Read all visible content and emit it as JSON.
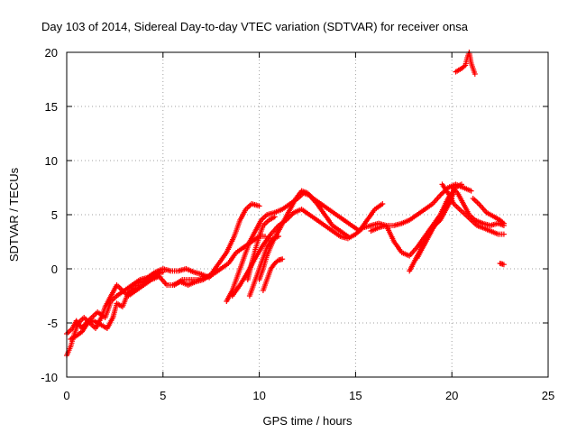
{
  "chart_data": {
    "type": "scatter",
    "title": "Day 103 of 2014, Sidereal Day-to-day VTEC variation (SDTVAR) for receiver onsa",
    "xlabel": "GPS time / hours",
    "ylabel": "SDTVAR / TECUs",
    "xlim": [
      0,
      25
    ],
    "ylim": [
      -10,
      20
    ],
    "xticks": [
      0,
      5,
      10,
      15,
      20,
      25
    ],
    "yticks": [
      -10,
      -5,
      0,
      5,
      10,
      15,
      20
    ],
    "grid": true,
    "marker": "plus",
    "series": [
      {
        "name": "SDTVAR",
        "color": "#ff0000",
        "tracks": [
          [
            [
              0,
              -6
            ],
            [
              0.3,
              -5.5
            ],
            [
              0.5,
              -4.8
            ],
            [
              0.8,
              -5.5
            ],
            [
              1.0,
              -5
            ],
            [
              1.3,
              -4.5
            ],
            [
              1.6,
              -4
            ],
            [
              2.0,
              -4.5
            ],
            [
              2.3,
              -3
            ],
            [
              2.6,
              -2.5
            ],
            [
              3.0,
              -2
            ],
            [
              3.4,
              -1.5
            ],
            [
              3.8,
              -1
            ],
            [
              4.2,
              -0.8
            ],
            [
              4.6,
              -0.3
            ],
            [
              5.0,
              0
            ],
            [
              5.4,
              -0.2
            ],
            [
              5.8,
              -0.2
            ],
            [
              6.2,
              0
            ],
            [
              6.6,
              -0.3
            ],
            [
              7.0,
              -0.5
            ],
            [
              7.4,
              -0.8
            ],
            [
              7.8,
              0
            ]
          ],
          [
            [
              0,
              -8
            ],
            [
              0.2,
              -7.2
            ],
            [
              0.4,
              -6
            ],
            [
              0.6,
              -5
            ],
            [
              0.9,
              -4.5
            ],
            [
              1.2,
              -5
            ],
            [
              1.5,
              -5.5
            ],
            [
              1.8,
              -4.5
            ],
            [
              2.0,
              -3.5
            ],
            [
              2.3,
              -2.5
            ],
            [
              2.6,
              -1.5
            ],
            [
              2.9,
              -2
            ],
            [
              3.2,
              -2.5
            ],
            [
              3.6,
              -2
            ],
            [
              4.0,
              -1.5
            ],
            [
              4.4,
              -1
            ],
            [
              4.8,
              -0.7
            ],
            [
              5.2,
              -1.5
            ],
            [
              5.6,
              -1.5
            ],
            [
              6.0,
              -1
            ],
            [
              6.4,
              -1
            ],
            [
              6.8,
              -1
            ],
            [
              7.2,
              -0.8
            ],
            [
              7.6,
              -0.5
            ],
            [
              8.0,
              0
            ],
            [
              8.4,
              0.5
            ],
            [
              8.8,
              1.5
            ],
            [
              9.2,
              2
            ],
            [
              9.6,
              2.5
            ],
            [
              10.0,
              3
            ],
            [
              10.3,
              3
            ]
          ],
          [
            [
              0.2,
              -6.5
            ],
            [
              0.5,
              -6.2
            ],
            [
              0.8,
              -5.8
            ],
            [
              1.1,
              -5
            ],
            [
              1.4,
              -4.8
            ],
            [
              1.8,
              -5.2
            ],
            [
              2.1,
              -5.5
            ],
            [
              2.4,
              -4.5
            ],
            [
              2.6,
              -3.2
            ],
            [
              2.9,
              -3.5
            ],
            [
              3.2,
              -2.2
            ],
            [
              3.5,
              -1.8
            ],
            [
              3.8,
              -1.3
            ],
            [
              4.2,
              -1
            ],
            [
              4.6,
              -0.5
            ],
            [
              5.0,
              -0.3
            ]
          ],
          [
            [
              5.5,
              -1.5
            ],
            [
              5.9,
              -1.2
            ],
            [
              6.3,
              -1.5
            ],
            [
              6.7,
              -1.2
            ],
            [
              7.1,
              -1
            ],
            [
              7.5,
              -0.5
            ],
            [
              7.9,
              0.5
            ],
            [
              8.3,
              1.5
            ],
            [
              8.7,
              3
            ],
            [
              9.0,
              4.5
            ],
            [
              9.3,
              5.5
            ],
            [
              9.6,
              6
            ],
            [
              10.0,
              5.8
            ]
          ],
          [
            [
              8.3,
              -3
            ],
            [
              8.6,
              -2
            ],
            [
              8.9,
              -0.5
            ],
            [
              9.2,
              1
            ],
            [
              9.5,
              2.5
            ],
            [
              9.8,
              3.5
            ],
            [
              10.1,
              4.5
            ],
            [
              10.4,
              5
            ],
            [
              10.8,
              5.2
            ],
            [
              11.2,
              5.5
            ],
            [
              11.6,
              6
            ],
            [
              12.0,
              6.5
            ],
            [
              12.3,
              7
            ],
            [
              12.6,
              6.8
            ],
            [
              13.0,
              6
            ],
            [
              13.4,
              5
            ],
            [
              13.8,
              4
            ],
            [
              14.2,
              3.5
            ],
            [
              14.6,
              3
            ]
          ],
          [
            [
              8.6,
              -2.5
            ],
            [
              9.0,
              -1.5
            ],
            [
              9.4,
              -0.3
            ],
            [
              9.8,
              1
            ],
            [
              10.2,
              2.2
            ],
            [
              10.6,
              3.2
            ],
            [
              11.0,
              4
            ],
            [
              11.4,
              4.5
            ],
            [
              11.8,
              5.2
            ],
            [
              12.2,
              5.5
            ],
            [
              12.6,
              5
            ],
            [
              13.0,
              4.5
            ],
            [
              13.4,
              4
            ],
            [
              13.8,
              3.5
            ],
            [
              14.2,
              3
            ],
            [
              14.6,
              2.8
            ],
            [
              15.0,
              3.2
            ],
            [
              15.4,
              3.8
            ],
            [
              15.8,
              4
            ],
            [
              16.2,
              4.2
            ],
            [
              16.6,
              4
            ],
            [
              17.0,
              4
            ],
            [
              17.4,
              4.2
            ],
            [
              17.8,
              4.5
            ],
            [
              18.2,
              5
            ],
            [
              18.6,
              5.5
            ],
            [
              19.0,
              6
            ],
            [
              19.4,
              6.8
            ],
            [
              19.8,
              7.5
            ],
            [
              20.2,
              7.8
            ],
            [
              20.6,
              7.5
            ],
            [
              21.0,
              7.2
            ]
          ],
          [
            [
              9.4,
              -1
            ],
            [
              9.6,
              0.5
            ],
            [
              9.8,
              1.8
            ],
            [
              10.0,
              3
            ],
            [
              10.2,
              4
            ],
            [
              10.5,
              4.5
            ],
            [
              10.8,
              4.8
            ]
          ],
          [
            [
              9.5,
              -2.5
            ],
            [
              9.8,
              -1
            ],
            [
              10.0,
              0
            ],
            [
              10.2,
              1
            ],
            [
              10.4,
              2
            ],
            [
              10.7,
              2.8
            ],
            [
              11.0,
              3
            ]
          ],
          [
            [
              10.0,
              -1
            ],
            [
              10.2,
              0
            ],
            [
              10.4,
              1.2
            ],
            [
              10.7,
              2.5
            ],
            [
              11.0,
              3.5
            ],
            [
              11.3,
              4.5
            ],
            [
              11.6,
              5.5
            ],
            [
              11.9,
              6.5
            ],
            [
              12.2,
              7.2
            ],
            [
              12.5,
              7
            ],
            [
              12.8,
              6.5
            ],
            [
              13.2,
              6
            ],
            [
              13.6,
              5.5
            ],
            [
              14.0,
              5
            ],
            [
              14.4,
              4.5
            ],
            [
              14.8,
              4
            ],
            [
              15.2,
              3.5
            ],
            [
              15.6,
              4.5
            ],
            [
              16.0,
              5.5
            ],
            [
              16.4,
              6
            ]
          ],
          [
            [
              10.2,
              -2
            ],
            [
              10.4,
              -1
            ],
            [
              10.6,
              0
            ],
            [
              10.8,
              0.5
            ],
            [
              11.0,
              0.8
            ],
            [
              11.2,
              0.9
            ]
          ],
          [
            [
              15.8,
              3.5
            ],
            [
              16.2,
              3.8
            ],
            [
              16.6,
              4
            ],
            [
              17.0,
              2.5
            ],
            [
              17.4,
              1.5
            ],
            [
              17.8,
              1.2
            ],
            [
              18.2,
              2
            ],
            [
              18.6,
              3
            ],
            [
              19.0,
              4
            ],
            [
              19.4,
              5
            ],
            [
              19.8,
              6.5
            ],
            [
              20.2,
              7.5
            ],
            [
              20.5,
              7.8
            ]
          ],
          [
            [
              17.8,
              -0.2
            ],
            [
              18.0,
              0.5
            ],
            [
              18.3,
              1.5
            ],
            [
              18.6,
              2.5
            ],
            [
              18.9,
              3.5
            ],
            [
              19.2,
              4.2
            ],
            [
              19.5,
              5
            ],
            [
              19.8,
              6
            ],
            [
              20.1,
              7
            ]
          ],
          [
            [
              18.2,
              1
            ],
            [
              18.5,
              2
            ],
            [
              18.8,
              3
            ],
            [
              19.1,
              4
            ],
            [
              19.4,
              4.5
            ],
            [
              19.7,
              5.5
            ],
            [
              20.0,
              6.5
            ]
          ],
          [
            [
              19.5,
              7.8
            ],
            [
              19.8,
              7
            ],
            [
              20.1,
              6
            ],
            [
              20.4,
              5.5
            ],
            [
              20.7,
              5
            ],
            [
              21.0,
              4.5
            ],
            [
              21.3,
              4
            ],
            [
              21.6,
              3.8
            ],
            [
              22.0,
              3.5
            ],
            [
              22.4,
              3.2
            ],
            [
              22.7,
              3.2
            ]
          ],
          [
            [
              20.0,
              7.5
            ],
            [
              20.3,
              7
            ],
            [
              20.6,
              6
            ],
            [
              20.9,
              5
            ],
            [
              21.2,
              4.5
            ],
            [
              21.6,
              4.2
            ],
            [
              22.0,
              4
            ],
            [
              22.4,
              4.2
            ],
            [
              22.7,
              4
            ]
          ],
          [
            [
              21.1,
              6.5
            ],
            [
              21.4,
              6
            ],
            [
              21.8,
              5.2
            ],
            [
              22.2,
              4.8
            ],
            [
              22.5,
              4.5
            ],
            [
              22.7,
              4.2
            ]
          ],
          [
            [
              20.2,
              18.2
            ],
            [
              20.5,
              18.5
            ],
            [
              20.7,
              18.8
            ],
            [
              20.8,
              19.5
            ],
            [
              20.9,
              20
            ],
            [
              21.0,
              19
            ],
            [
              21.1,
              18.5
            ],
            [
              21.2,
              18
            ]
          ],
          [
            [
              22.5,
              0.5
            ],
            [
              22.7,
              0.4
            ]
          ]
        ]
      }
    ]
  }
}
